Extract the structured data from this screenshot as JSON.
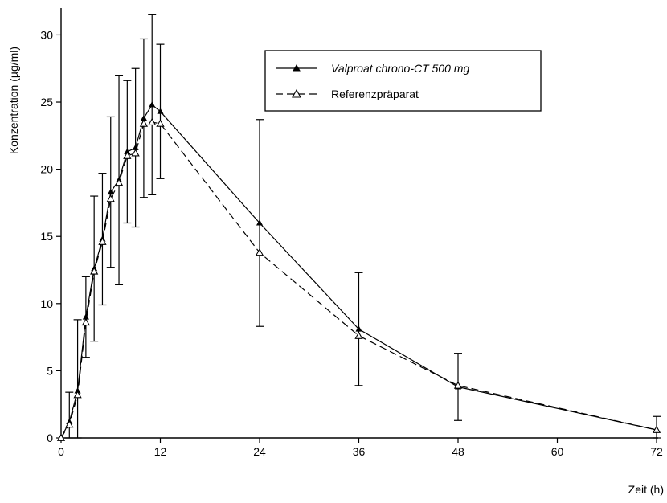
{
  "chart_data": {
    "type": "line",
    "title": "",
    "xlabel": "Zeit (h)",
    "ylabel": "Konzentration (µg/ml)",
    "xlim": [
      0,
      72
    ],
    "ylim": [
      0,
      32
    ],
    "xticks": [
      0,
      12,
      24,
      36,
      48,
      60,
      72
    ],
    "yticks": [
      0,
      5,
      10,
      15,
      20,
      25,
      30
    ],
    "grid": false,
    "legend_position": "top-right",
    "series": [
      {
        "name": "Valproat chrono-CT 500 mg",
        "marker": "filled-triangle",
        "line": "solid",
        "x": [
          0,
          1,
          2,
          3,
          4,
          5,
          6,
          7,
          8,
          9,
          10,
          11,
          12,
          24,
          36,
          48,
          72
        ],
        "y": [
          0,
          1.2,
          3.5,
          9.0,
          12.6,
          14.8,
          18.3,
          19.2,
          21.3,
          21.6,
          23.8,
          24.8,
          24.3,
          16.0,
          8.1,
          3.8,
          0.6
        ],
        "error": [
          0,
          2.2,
          5.3,
          3.0,
          5.4,
          4.9,
          5.6,
          7.8,
          5.3,
          5.9,
          5.9,
          6.7,
          5.0,
          7.7,
          4.2,
          2.5,
          1.0
        ]
      },
      {
        "name": "Referenzpräparat",
        "marker": "open-triangle",
        "line": "dashed",
        "x": [
          0,
          1,
          2,
          3,
          4,
          5,
          6,
          7,
          8,
          9,
          10,
          11,
          12,
          24,
          36,
          48,
          72
        ],
        "y": [
          0,
          1.0,
          3.2,
          8.6,
          12.4,
          14.6,
          17.8,
          19.0,
          21.0,
          21.2,
          23.4,
          23.5,
          23.4,
          13.8,
          7.6,
          3.9,
          0.6
        ],
        "error": [
          0,
          0,
          0,
          0,
          0,
          0,
          0,
          0,
          0,
          0,
          0,
          0,
          0,
          0,
          0,
          0,
          0
        ]
      }
    ]
  }
}
